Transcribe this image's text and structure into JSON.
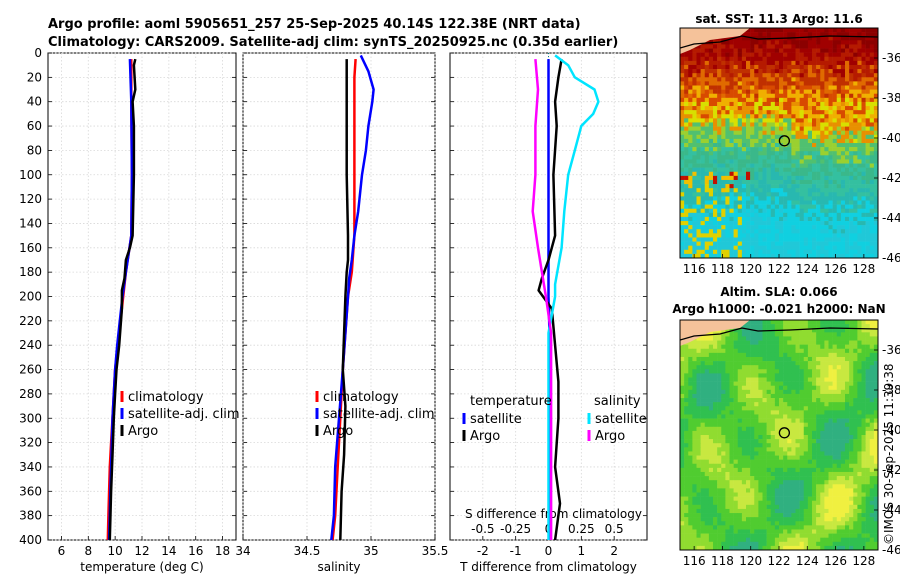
{
  "header": {
    "line1": "Argo profile: aoml 5905651_257 25-Sep-2025 40.14S 122.38E (NRT data)",
    "line2": "Climatology: CARS2009. Satellite-adj clim: synTS_20250925.nc (0.35d earlier)"
  },
  "watermark": "©IMOS 30-Sep-2025 11:39:38",
  "colors": {
    "climatology": "#ff0000",
    "satellite": "#0000ff",
    "argo": "#000000",
    "temp_sat": "#0000ff",
    "sal_sat": "#00e5ff",
    "sal_argo": "#ff00ff"
  },
  "chart_data": [
    {
      "type": "line",
      "name": "temperature",
      "xlabel": "temperature (deg C)",
      "ylabel": "",
      "xlim": [
        5,
        19
      ],
      "ylim": [
        400,
        0
      ],
      "xticks": [
        6,
        8,
        10,
        12,
        14,
        16,
        18
      ],
      "yticks": [
        0,
        20,
        40,
        60,
        80,
        100,
        120,
        140,
        160,
        180,
        200,
        220,
        240,
        260,
        280,
        300,
        320,
        340,
        360,
        380,
        400
      ],
      "legend": [
        "climatology",
        "satellite-adj. clim",
        "Argo"
      ],
      "series": [
        {
          "name": "climatology",
          "color": "#ff0000",
          "depth": [
            5,
            40,
            100,
            150,
            165,
            180,
            200,
            220,
            240,
            260,
            280,
            300,
            320,
            340,
            360,
            380,
            400
          ],
          "values": [
            11.2,
            11.2,
            11.25,
            11.2,
            11.0,
            10.8,
            10.6,
            10.4,
            10.2,
            10.0,
            9.9,
            9.8,
            9.7,
            9.6,
            9.55,
            9.5,
            9.45
          ]
        },
        {
          "name": "satellite-adj. clim",
          "color": "#0000ff",
          "depth": [
            5,
            40,
            100,
            150,
            165,
            180,
            200,
            220,
            240,
            260,
            280,
            300,
            320,
            340,
            360,
            380,
            400
          ],
          "values": [
            11.1,
            11.2,
            11.25,
            11.2,
            11.0,
            10.8,
            10.55,
            10.35,
            10.15,
            10.0,
            9.9,
            9.8,
            9.75,
            9.7,
            9.65,
            9.6,
            9.55
          ]
        },
        {
          "name": "Argo",
          "color": "#000000",
          "depth": [
            5,
            10,
            30,
            40,
            60,
            100,
            150,
            160,
            170,
            185,
            195,
            210,
            240,
            260,
            280,
            300,
            330,
            360,
            400
          ],
          "values": [
            11.5,
            11.4,
            11.5,
            11.3,
            11.4,
            11.4,
            11.3,
            11.1,
            10.8,
            10.7,
            10.5,
            10.5,
            10.3,
            10.1,
            10.0,
            9.9,
            9.8,
            9.7,
            9.6
          ]
        }
      ]
    },
    {
      "type": "line",
      "name": "salinity",
      "xlabel": "salinity",
      "ylabel": "",
      "xlim": [
        34,
        35.5
      ],
      "ylim": [
        400,
        0
      ],
      "xticks": [
        34,
        34.5,
        35,
        35.5
      ],
      "xticklabels": [
        "34",
        "34.5",
        "35",
        "35.5"
      ],
      "legend": [
        "climatology",
        "satellite-adj. clim",
        "Argo"
      ],
      "series": [
        {
          "name": "climatology",
          "color": "#ff0000",
          "depth": [
            5,
            20,
            50,
            100,
            150,
            180,
            200,
            230,
            260,
            300,
            340,
            380,
            400
          ],
          "values": [
            34.88,
            34.87,
            34.87,
            34.87,
            34.87,
            34.85,
            34.82,
            34.8,
            34.78,
            34.76,
            34.74,
            34.72,
            34.7
          ]
        },
        {
          "name": "satellite-adj. clim",
          "color": "#0000ff",
          "depth": [
            2,
            15,
            30,
            40,
            60,
            80,
            100,
            130,
            150,
            170,
            185,
            200,
            230,
            260,
            300,
            340,
            380,
            400
          ],
          "values": [
            34.92,
            34.98,
            35.02,
            35.01,
            34.98,
            34.96,
            34.93,
            34.9,
            34.87,
            34.85,
            34.83,
            34.82,
            34.8,
            34.78,
            34.75,
            34.72,
            34.71,
            34.69
          ]
        },
        {
          "name": "Argo",
          "color": "#000000",
          "depth": [
            5,
            50,
            100,
            150,
            170,
            180,
            200,
            230,
            260,
            290,
            330,
            360,
            400
          ],
          "values": [
            34.81,
            34.81,
            34.81,
            34.82,
            34.82,
            34.81,
            34.8,
            34.79,
            34.78,
            34.8,
            34.79,
            34.77,
            34.76
          ]
        }
      ]
    },
    {
      "type": "line",
      "name": "difference from climatology",
      "xlabel": "T difference from climatology",
      "xlabel2": "S difference from climatology",
      "xlim": [
        -3,
        3
      ],
      "ylim": [
        400,
        0
      ],
      "xticks": [
        -2,
        -1,
        0,
        1,
        2
      ],
      "xticks2": [
        -0.5,
        -0.25,
        0,
        0.25,
        0.5
      ],
      "xticklabels2": [
        "-0.5",
        "-0.25",
        "0",
        "0.25",
        "0.5"
      ],
      "legend_headers": [
        "temperature",
        "salinity"
      ],
      "legend": [
        "satellite",
        "Argo",
        "satellite",
        "Argo"
      ],
      "series": [
        {
          "name": "temperature satellite",
          "color": "#0000ff",
          "depth": [
            5,
            50,
            100,
            150,
            200,
            250,
            300,
            350,
            400
          ],
          "values": [
            0.0,
            0.0,
            0.0,
            0.0,
            0.0,
            0.05,
            0.05,
            0.05,
            0.05
          ]
        },
        {
          "name": "temperature Argo",
          "color": "#000000",
          "depth": [
            5,
            20,
            40,
            60,
            100,
            150,
            170,
            185,
            195,
            210,
            240,
            270,
            300,
            340,
            370,
            400
          ],
          "values": [
            0.4,
            0.3,
            0.2,
            0.25,
            0.15,
            0.2,
            0.0,
            -0.2,
            -0.3,
            0.1,
            0.2,
            0.3,
            0.3,
            0.2,
            0.35,
            0.2
          ]
        },
        {
          "name": "salinity satellite",
          "color": "#00e5ff",
          "depth": [
            2,
            10,
            20,
            30,
            40,
            50,
            60,
            80,
            100,
            130,
            160,
            190,
            200,
            230,
            260,
            300,
            340,
            400
          ],
          "values": [
            0.05,
            0.15,
            0.2,
            0.35,
            0.38,
            0.34,
            0.25,
            0.2,
            0.15,
            0.12,
            0.1,
            0.05,
            0.05,
            0.0,
            0.0,
            0.0,
            0.0,
            0.0
          ]
        },
        {
          "name": "salinity Argo",
          "color": "#ff00ff",
          "depth": [
            5,
            30,
            60,
            100,
            130,
            160,
            180,
            200,
            230,
            260,
            300,
            350,
            400
          ],
          "values": [
            -0.1,
            -0.08,
            -0.1,
            -0.1,
            -0.12,
            -0.08,
            -0.05,
            -0.02,
            0.02,
            0.02,
            0.02,
            0.02,
            0.02
          ]
        }
      ]
    },
    {
      "type": "heatmap",
      "name": "satellite SST",
      "title": "sat. SST: 11.3 Argo: 11.6",
      "xlim": [
        115,
        129
      ],
      "ylim": [
        -46,
        -34.5
      ],
      "xticks": [
        116,
        118,
        120,
        122,
        124,
        126,
        128
      ],
      "yticks": [
        -36,
        -38,
        -40,
        -42,
        -44,
        -46
      ],
      "profile_location": {
        "lon": 122.38,
        "lat": -40.14
      }
    },
    {
      "type": "heatmap",
      "name": "altimetry SLA",
      "title": "Altim. SLA: 0.066",
      "subtitle": "Argo h1000: -0.021 h2000: NaN",
      "xlim": [
        115,
        129
      ],
      "ylim": [
        -46,
        -34.5
      ],
      "xticks": [
        116,
        118,
        120,
        122,
        124,
        126,
        128
      ],
      "yticks": [
        -36,
        -38,
        -40,
        -42,
        -44,
        -46
      ],
      "profile_location": {
        "lon": 122.38,
        "lat": -40.14
      }
    }
  ]
}
